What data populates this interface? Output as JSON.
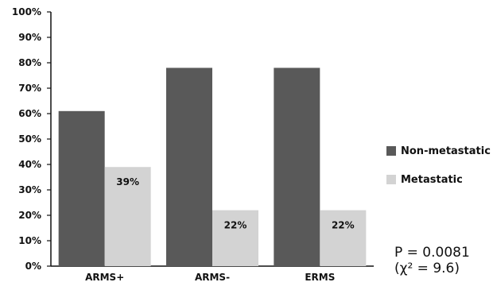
{
  "chart_data": {
    "type": "bar",
    "categories": [
      "ARMS+",
      "ARMS-",
      "ERMS"
    ],
    "series": [
      {
        "name": "Non-metastatic",
        "values": [
          61,
          78,
          78
        ],
        "color": "#595959",
        "data_labels": [
          "",
          "",
          ""
        ]
      },
      {
        "name": "Metastatic",
        "values": [
          39,
          22,
          22
        ],
        "color": "#d3d3d3",
        "data_labels": [
          "39%",
          "22%",
          "22%"
        ]
      }
    ],
    "ylim": [
      0,
      100
    ],
    "y_ticks": [
      "0%",
      "10%",
      "20%",
      "30%",
      "40%",
      "50%",
      "60%",
      "70%",
      "80%",
      "90%",
      "100%"
    ],
    "grid": false,
    "legend_position": "right",
    "title": "",
    "xlabel": "",
    "ylabel": ""
  },
  "annotation": {
    "p_value": "P = 0.0081",
    "chi_square": "(χ² = 9.6)"
  }
}
